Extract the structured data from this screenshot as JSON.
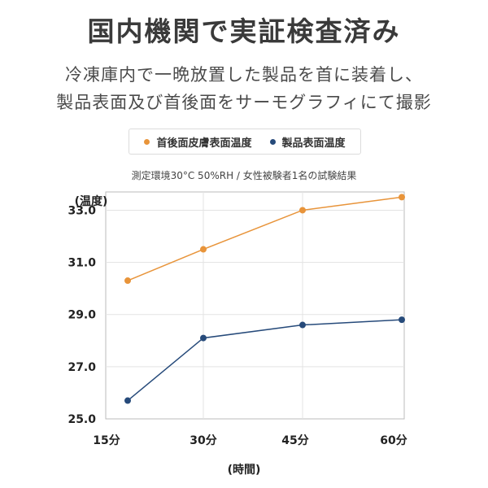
{
  "title": "国内機関で実証検査済み",
  "subtitle_lines": [
    "冷凍庫内で一晩放置した製品を首に装着し、",
    "製品表面及び首後面をサーモグラフィにて撮影"
  ],
  "note": "測定環境30°C 50%RH / 女性被験者1名の試験結果",
  "colors": {
    "orange": "#e8943a",
    "navy": "#264a7a",
    "grid": "#e3e3e3",
    "axis": "#bbbbbb"
  },
  "chart_data": {
    "type": "line",
    "categories": [
      "15分",
      "30分",
      "45分",
      "60分"
    ],
    "series": [
      {
        "name": "首後面皮膚表面温度",
        "color": "#e8943a",
        "values": [
          30.3,
          31.5,
          33.0,
          33.5
        ]
      },
      {
        "name": "製品表面温度",
        "color": "#264a7a",
        "values": [
          25.7,
          28.1,
          28.6,
          28.8
        ]
      }
    ],
    "ylabel": "(温度)",
    "xlabel": "(時間)",
    "ylim": [
      25.0,
      33.0
    ],
    "yticks": [
      "25.0",
      "27.0",
      "29.0",
      "31.0",
      "33.0"
    ],
    "grid": true,
    "legend_position": "top"
  }
}
